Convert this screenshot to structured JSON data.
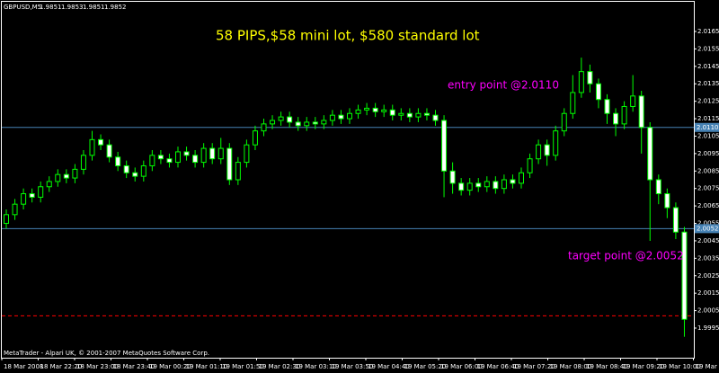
{
  "chart_data": {
    "type": "candlestick",
    "symbol": "GBPUSD,M5",
    "quote": [
      1.9851,
      1.9853,
      1.9851,
      1.9852
    ],
    "footer": "MetaTrader - Alpari UK, © 2001-2007 MetaQuotes Software Corp.",
    "annotations": [
      {
        "text": "58 PIPS,$58 mini lot, $580 standard lot",
        "color": "#ffff00"
      },
      {
        "text": "entry point @2.0110",
        "color": "#ff00ff"
      },
      {
        "text": "target point @2.0052",
        "color": "#ff00ff"
      }
    ],
    "price_lines": [
      {
        "value": 2.011,
        "label": "2.0110",
        "color": "#4682b4"
      },
      {
        "value": 2.0052,
        "color": "#4682b4"
      }
    ],
    "dashed_line": {
      "value": 2.0002,
      "color": "#ff0000"
    },
    "bull_color": "#00ff00",
    "bear_fill": "#ffffff",
    "bull_fill": "#000000",
    "ylim": [
      1.9978,
      2.0182
    ],
    "yticks": [
      1.9995,
      2.0005,
      2.0015,
      2.0025,
      2.0035,
      2.0045,
      2.0055,
      2.0065,
      2.0075,
      2.0085,
      2.0095,
      2.0105,
      2.0115,
      2.0125,
      2.0135,
      2.0145,
      2.0155,
      2.0165
    ],
    "x_labels": [
      "18 Mar 2008",
      "18 Mar 22:20",
      "18 Mar 23:00",
      "18 Mar 23:40",
      "19 Mar 00:20",
      "19 Mar 01:10",
      "19 Mar 01:50",
      "19 Mar 02:30",
      "19 Mar 03:10",
      "19 Mar 03:50",
      "19 Mar 04:40",
      "19 Mar 05:20",
      "19 Mar 06:00",
      "19 Mar 06:40",
      "19 Mar 07:20",
      "19 Mar 08:00",
      "19 Mar 08:40",
      "19 Mar 09:20",
      "19 Mar 10:00",
      "19 Mar 10"
    ],
    "open": [
      2.0055,
      2.006,
      2.0066,
      2.0072,
      2.007,
      2.0076,
      2.0079,
      2.0083,
      2.0081,
      2.0086,
      2.0094,
      2.0103,
      2.01,
      2.0093,
      2.0088,
      2.0084,
      2.0082,
      2.0088,
      2.0094,
      2.0092,
      2.009,
      2.0096,
      2.0094,
      2.009,
      2.0098,
      2.0092,
      2.0098,
      2.008,
      2.009,
      2.01,
      2.0108,
      2.0112,
      2.0114,
      2.0116,
      2.0113,
      2.0111,
      2.0113,
      2.0112,
      2.0114,
      2.0117,
      2.0115,
      2.0118,
      2.012,
      2.0121,
      2.0119,
      2.012,
      2.0117,
      2.0118,
      2.0116,
      2.0118,
      2.0117,
      2.0114,
      2.0085,
      2.0078,
      2.0074,
      2.0078,
      2.0076,
      2.0079,
      2.0075,
      2.008,
      2.0078,
      2.0084,
      2.0092,
      2.01,
      2.0094,
      2.0108,
      2.0118,
      2.013,
      2.0142,
      2.0135,
      2.0126,
      2.0118,
      2.0112,
      2.0122,
      2.0128,
      2.011,
      2.008,
      2.0072,
      2.0064,
      2.005
    ],
    "high": [
      2.0063,
      2.0069,
      2.0075,
      2.0075,
      2.0079,
      2.0082,
      2.0086,
      2.0086,
      2.0089,
      2.0097,
      2.0108,
      2.0106,
      2.0103,
      2.0096,
      2.0091,
      2.0087,
      2.0091,
      2.0097,
      2.0097,
      2.0095,
      2.0099,
      2.0099,
      2.0097,
      2.0101,
      2.0101,
      2.0104,
      2.0101,
      2.0093,
      2.0103,
      2.0111,
      2.0115,
      2.0117,
      2.0119,
      2.0119,
      2.0116,
      2.0116,
      2.0116,
      2.0117,
      2.012,
      2.012,
      2.0121,
      2.0123,
      2.0124,
      2.0124,
      2.0123,
      2.0123,
      2.0121,
      2.0121,
      2.0121,
      2.0121,
      2.012,
      2.0117,
      2.009,
      2.0081,
      2.0081,
      2.0081,
      2.0082,
      2.0082,
      2.0083,
      2.0083,
      2.0087,
      2.0095,
      2.0103,
      2.0103,
      2.0111,
      2.0121,
      2.014,
      2.015,
      2.0146,
      2.0138,
      2.0129,
      2.0121,
      2.0125,
      2.014,
      2.0131,
      2.0113,
      2.0083,
      2.0075,
      2.0067,
      2.0053
    ],
    "low": [
      2.0052,
      2.0057,
      2.0063,
      2.0067,
      2.0067,
      2.0073,
      2.0076,
      2.0078,
      2.0078,
      2.0083,
      2.0091,
      2.0097,
      2.009,
      2.0085,
      2.0081,
      2.0079,
      2.0079,
      2.0085,
      2.0089,
      2.0087,
      2.0087,
      2.0091,
      2.0087,
      2.0087,
      2.0089,
      2.0089,
      2.0077,
      2.0077,
      2.0087,
      2.0097,
      2.0105,
      2.0109,
      2.0111,
      2.011,
      2.0108,
      2.0108,
      2.0109,
      2.0109,
      2.0111,
      2.0112,
      2.0112,
      2.0115,
      2.0117,
      2.0116,
      2.0116,
      2.0114,
      2.0114,
      2.0113,
      2.0113,
      2.0114,
      2.0111,
      2.007,
      2.0072,
      2.0071,
      2.0071,
      2.0073,
      2.0073,
      2.0072,
      2.0072,
      2.0075,
      2.0075,
      2.0081,
      2.0089,
      2.0088,
      2.0091,
      2.0105,
      2.0115,
      2.0127,
      2.013,
      2.0121,
      2.0112,
      2.0105,
      2.0109,
      2.0119,
      2.0095,
      2.0045,
      2.0066,
      2.0058,
      2.0046,
      1.999
    ],
    "close": [
      2.006,
      2.0066,
      2.0072,
      2.007,
      2.0076,
      2.0079,
      2.0083,
      2.0081,
      2.0086,
      2.0094,
      2.0103,
      2.01,
      2.0093,
      2.0088,
      2.0084,
      2.0082,
      2.0088,
      2.0094,
      2.0092,
      2.009,
      2.0096,
      2.0094,
      2.009,
      2.0098,
      2.0092,
      2.0098,
      2.008,
      2.009,
      2.01,
      2.0108,
      2.0112,
      2.0114,
      2.0116,
      2.0113,
      2.0111,
      2.0113,
      2.0112,
      2.0114,
      2.0117,
      2.0115,
      2.0118,
      2.012,
      2.0121,
      2.0119,
      2.012,
      2.0117,
      2.0118,
      2.0116,
      2.0118,
      2.0117,
      2.0114,
      2.0085,
      2.0078,
      2.0074,
      2.0078,
      2.0076,
      2.0079,
      2.0075,
      2.008,
      2.0078,
      2.0084,
      2.0092,
      2.01,
      2.0094,
      2.0108,
      2.0118,
      2.013,
      2.0142,
      2.0135,
      2.0126,
      2.0118,
      2.0112,
      2.0122,
      2.0128,
      2.011,
      2.008,
      2.0072,
      2.0064,
      2.005,
      2.0
    ]
  }
}
